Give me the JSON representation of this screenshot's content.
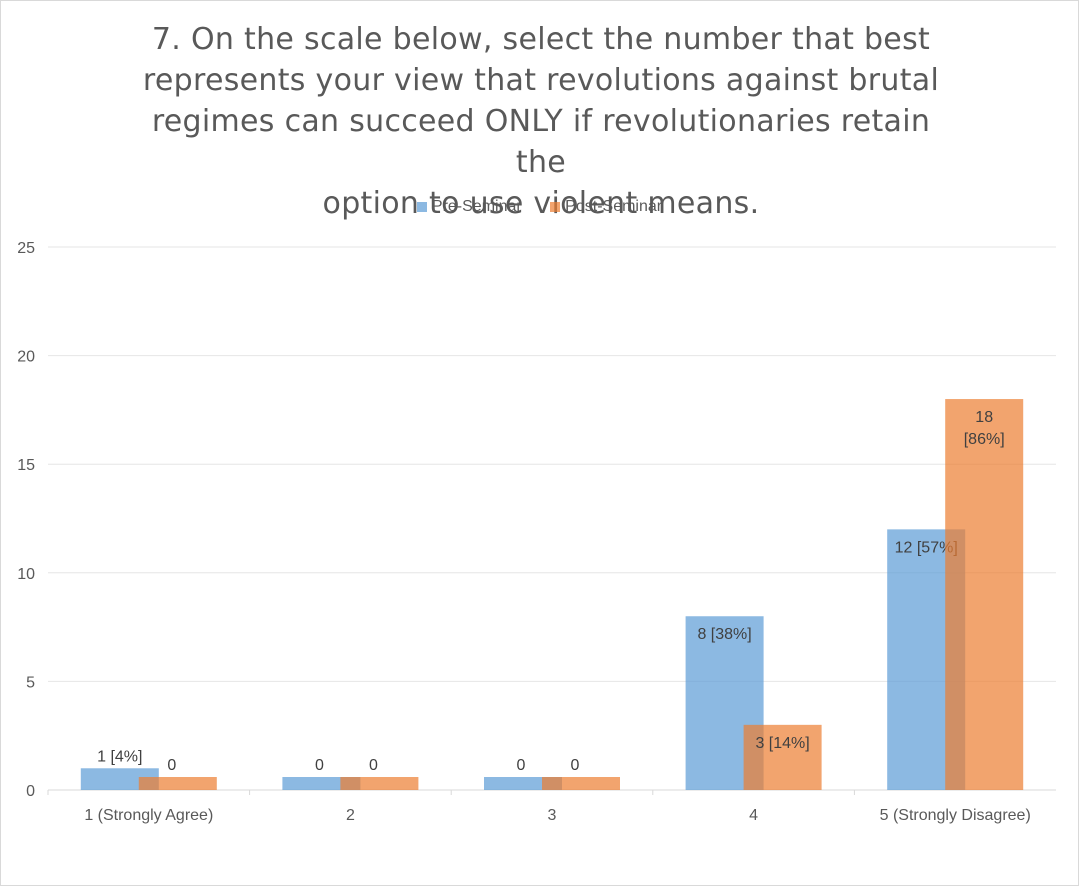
{
  "chart_data": {
    "type": "bar",
    "title": "7. On the scale below, select the number that best represents your view that revolutions against brutal regimes can succeed ONLY if revolutionaries retain the option to use violent means.",
    "title_lines": [
      "7. On the scale below, select the number that best",
      "represents your view that revolutions against brutal",
      "regimes can succeed ONLY if revolutionaries retain the",
      "option to use violent means."
    ],
    "categories": [
      "1 (Strongly Agree)",
      "2",
      "3",
      "4",
      "5 (Strongly Disagree)"
    ],
    "series": [
      {
        "name": "Pre-Seminar",
        "color": "#5b9bd5",
        "values": [
          1,
          0,
          0,
          8,
          12
        ],
        "labels": [
          [
            "1 [4%]"
          ],
          [
            "0"
          ],
          [
            "0"
          ],
          [
            "8 [38%]"
          ],
          [
            "12 [57%]"
          ]
        ]
      },
      {
        "name": "Post-Seminar",
        "color": "#ed7d31",
        "values": [
          0,
          0,
          0,
          3,
          18
        ],
        "labels": [
          [
            "0"
          ],
          [
            "0"
          ],
          [
            "0"
          ],
          [
            "3 [14%]"
          ],
          [
            "18",
            "[86%]"
          ]
        ]
      }
    ],
    "y_ticks": [
      0,
      5,
      10,
      15,
      20,
      25
    ],
    "ylim": [
      0,
      25
    ],
    "grid": true,
    "legend_position": "top"
  }
}
